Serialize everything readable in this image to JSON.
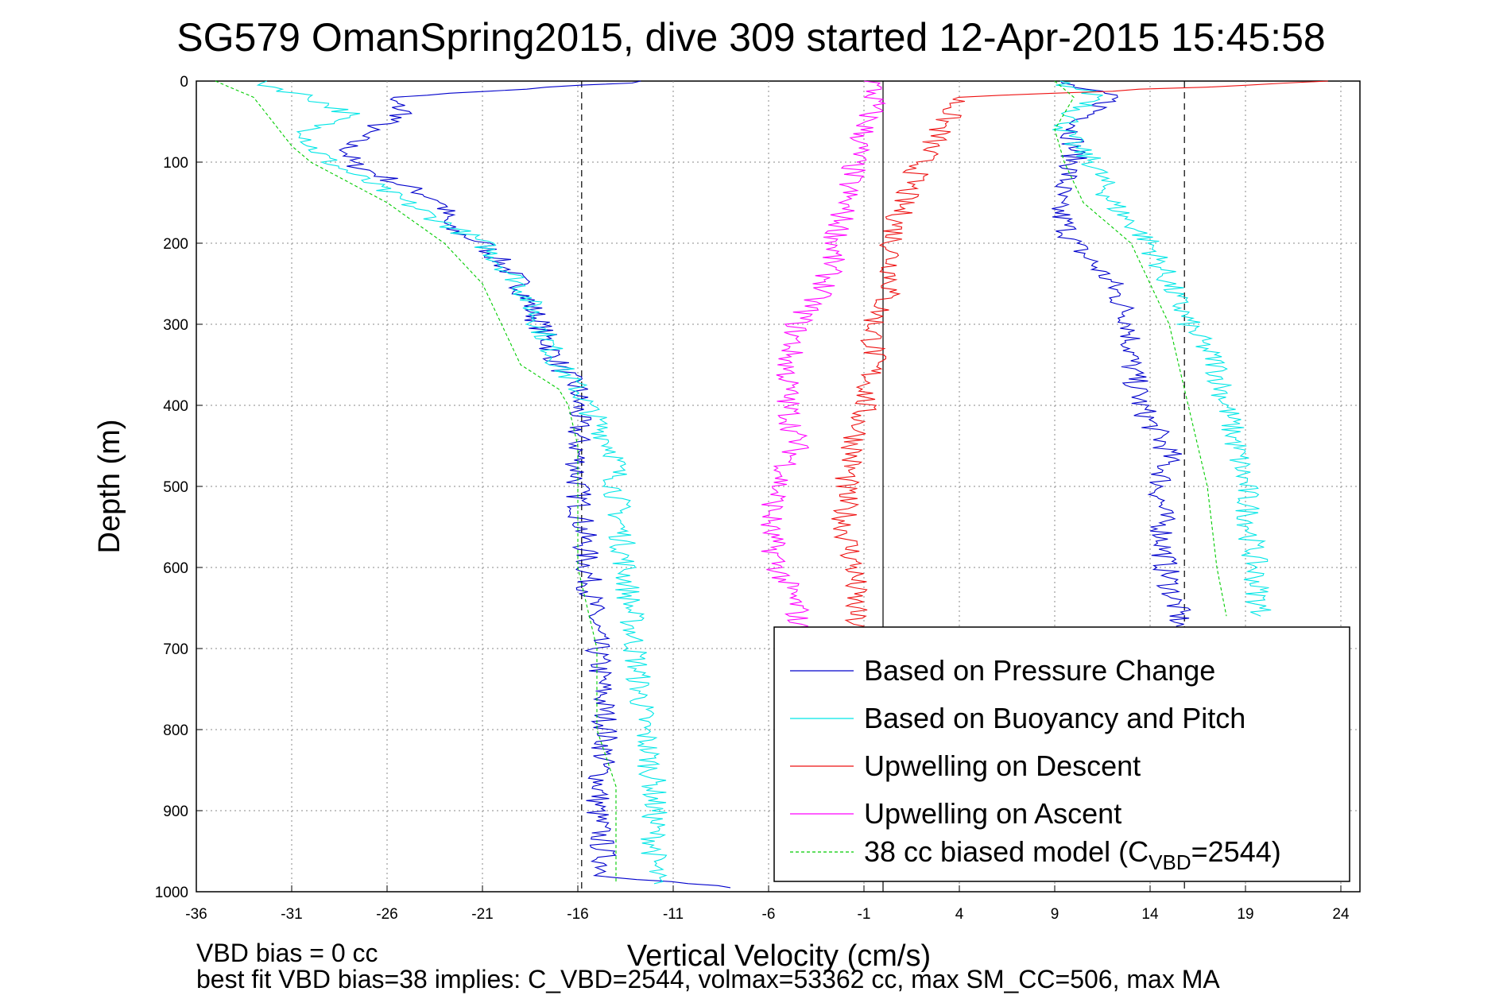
{
  "chart_data": {
    "type": "line",
    "title": "SG579 OmanSpring2015, dive 309 started 12-Apr-2015 15:45:58",
    "xlabel": "Vertical Velocity (cm/s)",
    "ylabel": "Depth (m)",
    "xlim": [
      -36,
      25
    ],
    "ylim": [
      0,
      1000
    ],
    "y_reversed": true,
    "grid": true,
    "legend_position": "bottom-right",
    "x_ticks": [
      "-36",
      "-31",
      "-26",
      "-21",
      "-16",
      "-11",
      "-6",
      "-1",
      "4",
      "9",
      "14",
      "19",
      "24"
    ],
    "y_ticks": [
      "0",
      "100",
      "200",
      "300",
      "400",
      "500",
      "600",
      "700",
      "800",
      "900",
      "1000"
    ],
    "reference_lines": [
      {
        "x": -15.8,
        "style": "dashed"
      },
      {
        "x": 0,
        "style": "solid"
      },
      {
        "x": 15.8,
        "style": "dashed"
      }
    ],
    "series": [
      {
        "name": "Based on Pressure Change",
        "color": "#0000cc",
        "segments": [
          {
            "depth": [
              0,
              20,
              40,
              60,
              80,
              100,
              120,
              150,
              180,
              200,
              250,
              300,
              350,
              380,
              420,
              460,
              500,
              600,
              700,
              800,
              900,
              980,
              995
            ],
            "velocity": [
              -12,
              -26,
              -25,
              -27,
              -28,
              -28,
              -26,
              -23,
              -23,
              -21,
              -19,
              -18,
              -17,
              -16,
              -16,
              -16,
              -16,
              -15.5,
              -15,
              -14.5,
              -15,
              -14.5,
              -8
            ]
          },
          {
            "depth": [
              0,
              20,
              40,
              60,
              80,
              100,
              150,
              200,
              250,
              300,
              350,
              400,
              460,
              500,
              600,
              660,
              700
            ],
            "velocity": [
              9,
              12,
              11,
              10,
              10,
              10,
              9,
              10,
              12,
              13,
              13,
              13.5,
              15,
              14.5,
              14.8,
              15.5,
              15.5
            ]
          }
        ]
      },
      {
        "name": "Based on Buoyancy and Pitch",
        "color": "#00e6e6",
        "segments": [
          {
            "depth": [
              0,
              20,
              40,
              60,
              80,
              100,
              150,
              200,
              250,
              300,
              350,
              380,
              420,
              460,
              500,
              600,
              700,
              800,
              870,
              950,
              990
            ],
            "velocity": [
              -33,
              -30,
              -28,
              -30,
              -30,
              -29,
              -25,
              -21,
              -19,
              -18,
              -17,
              -16,
              -15,
              -14,
              -14,
              -13.5,
              -13,
              -12.5,
              -12,
              -12,
              -12
            ]
          },
          {
            "depth": [
              0,
              20,
              40,
              60,
              80,
              100,
              150,
              200,
              250,
              300,
              350,
              400,
              450,
              500,
              600,
              660
            ],
            "velocity": [
              9,
              11.5,
              10,
              9.5,
              10,
              11,
              12,
              14,
              15,
              16,
              17.5,
              18,
              18.5,
              19,
              19.5,
              19.8
            ]
          }
        ]
      },
      {
        "name": "Upwelling on Descent",
        "color": "#ee1111",
        "segments": [
          {
            "depth": [
              0,
              20,
              60,
              100,
              150,
              200,
              250,
              300,
              350,
              400,
              450,
              500,
              550,
              600,
              650,
              700
            ],
            "velocity": [
              24,
              4,
              3,
              2,
              1,
              0.5,
              0.5,
              -0.5,
              -0.5,
              -1,
              -1.5,
              -2,
              -2,
              -1.5,
              -1.5,
              -1.5
            ]
          }
        ]
      },
      {
        "name": "Upwelling on Ascent",
        "color": "#ff00ff",
        "segments": [
          {
            "depth": [
              0,
              30,
              60,
              100,
              150,
              200,
              250,
              300,
              350,
              400,
              450,
              500,
              550,
              600,
              650,
              700
            ],
            "velocity": [
              -0.5,
              -0.5,
              -1,
              -1.5,
              -2,
              -2.5,
              -3,
              -4.5,
              -5,
              -5,
              -4.5,
              -5.5,
              -6,
              -5.5,
              -4.5,
              -4.5
            ]
          }
        ]
      },
      {
        "name": "38 cc biased model (C",
        "name_subscript": "VBD",
        "name_suffix": "=2544)",
        "color": "#00cc00",
        "dashed": true,
        "segments": [
          {
            "depth": [
              0,
              20,
              50,
              80,
              100,
              150,
              200,
              250,
              300,
              350,
              380,
              400,
              450,
              500,
              600,
              700,
              800,
              870,
              950,
              990
            ],
            "velocity": [
              -35,
              -33,
              -32,
              -31,
              -30,
              -26,
              -23,
              -21,
              -20,
              -19,
              -17,
              -16.5,
              -16,
              -16,
              -16,
              -15,
              -15,
              -14,
              -14,
              -14
            ]
          },
          {
            "depth": [
              0,
              20,
              40,
              60,
              100,
              150,
              200,
              250,
              300,
              350,
              400,
              450,
              500,
              600,
              660
            ],
            "velocity": [
              9,
              10,
              9.5,
              9,
              9.5,
              10.5,
              13,
              14,
              15,
              15.5,
              16,
              16.5,
              17,
              17.5,
              18
            ]
          }
        ]
      }
    ],
    "annotations": [
      "VBD bias = 0 cc",
      "best fit VBD bias=38 implies: C_VBD=2544, volmax=53362 cc, max SM_CC=506, max MA"
    ]
  }
}
